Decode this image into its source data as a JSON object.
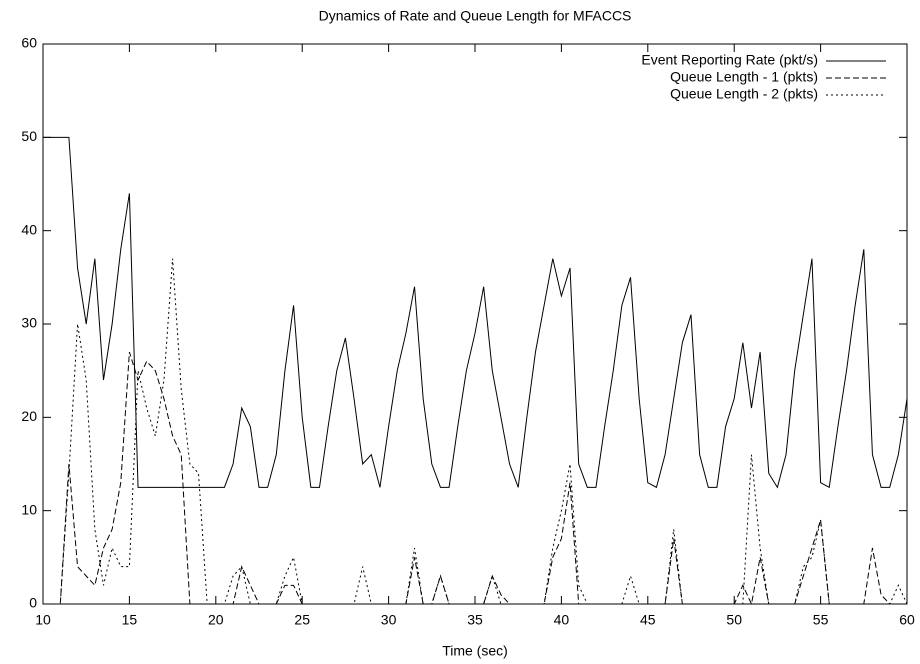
{
  "chart_data": {
    "type": "line",
    "title": "Dynamics of Rate and Queue Length for MFACCS",
    "xlabel": "Time (sec)",
    "x": [
      10,
      10.5,
      11,
      11.5,
      12,
      12.5,
      13,
      13.5,
      14,
      14.5,
      15,
      15.5,
      16,
      16.5,
      17,
      17.5,
      18,
      18.5,
      19,
      19.5,
      20,
      20.5,
      21,
      21.5,
      22,
      22.5,
      23,
      23.5,
      24,
      24.5,
      25,
      25.5,
      26,
      26.5,
      27,
      27.5,
      28,
      28.5,
      29,
      29.5,
      30,
      30.5,
      31,
      31.5,
      32,
      32.5,
      33,
      33.5,
      34,
      34.5,
      35,
      35.5,
      36,
      36.5,
      37,
      37.5,
      38,
      38.5,
      39,
      39.5,
      40,
      40.5,
      41,
      41.5,
      42,
      42.5,
      43,
      43.5,
      44,
      44.5,
      45,
      45.5,
      46,
      46.5,
      47,
      47.5,
      48,
      48.5,
      49,
      49.5,
      50,
      50.5,
      51,
      51.5,
      52,
      52.5,
      53,
      53.5,
      54,
      54.5,
      55,
      55.5,
      56,
      56.5,
      57,
      57.5,
      58,
      58.5,
      59,
      59.5,
      60
    ],
    "series": [
      {
        "name": "Event Reporting Rate (pkt/s)",
        "color": "#000000",
        "dash": "solid",
        "values": [
          50,
          50,
          50,
          50,
          36,
          30,
          37,
          24,
          30,
          38,
          44,
          12.5,
          12.5,
          12.5,
          12.5,
          12.5,
          12.5,
          12.5,
          12.5,
          12.5,
          12.5,
          12.5,
          15,
          21,
          19,
          12.5,
          12.5,
          16,
          25,
          32,
          20,
          12.5,
          12.5,
          19,
          25,
          28.5,
          22,
          15,
          16,
          12.5,
          19,
          25,
          29,
          34,
          22,
          15,
          12.5,
          12.5,
          19,
          25,
          29,
          34,
          25,
          20,
          15,
          12.5,
          20,
          27,
          32,
          37,
          33,
          36,
          15,
          12.5,
          12.5,
          19,
          25,
          32,
          35,
          22,
          13,
          12.5,
          16,
          22,
          28,
          31,
          16,
          12.5,
          12.5,
          19,
          22,
          28,
          21,
          27,
          14,
          12.5,
          16,
          25,
          31,
          37,
          13,
          12.5,
          19,
          25,
          32,
          38,
          16,
          12.5,
          12.5,
          16,
          22
        ]
      },
      {
        "name": "Queue Length - 1 (pkts)",
        "color": "#000000",
        "dash": "dashed",
        "values": [
          0,
          0,
          0,
          15,
          4,
          3,
          2,
          6,
          8,
          13,
          27,
          24,
          26,
          25,
          22,
          18,
          16,
          0,
          0,
          0,
          0,
          0,
          0,
          4,
          2,
          0,
          0,
          0,
          2,
          2,
          0,
          0,
          0,
          0,
          0,
          0,
          0,
          0,
          0,
          0,
          0,
          0,
          0,
          5,
          0,
          0,
          3,
          0,
          0,
          0,
          0,
          0,
          3,
          1,
          0,
          0,
          0,
          0,
          0,
          5,
          7,
          13,
          0,
          0,
          0,
          0,
          0,
          0,
          0,
          0,
          0,
          0,
          0,
          7,
          0,
          0,
          0,
          0,
          0,
          0,
          0,
          2,
          0,
          5,
          0,
          0,
          0,
          0,
          3,
          6,
          9,
          0,
          0,
          0,
          0,
          0,
          6,
          1,
          0,
          0,
          0
        ]
      },
      {
        "name": "Queue Length - 2 (pkts)",
        "color": "#000000",
        "dash": "dotted",
        "values": [
          0,
          0,
          0,
          14,
          30,
          24,
          8,
          2,
          6,
          4,
          4,
          25,
          21,
          18,
          24,
          37,
          23,
          15,
          14,
          0,
          0,
          0,
          3,
          4,
          0,
          0,
          0,
          0,
          3,
          5,
          0,
          0,
          0,
          0,
          0,
          0,
          0,
          4,
          0,
          0,
          0,
          0,
          0,
          6,
          0,
          0,
          3,
          0,
          0,
          0,
          0,
          0,
          3,
          0,
          0,
          0,
          0,
          0,
          0,
          6,
          10,
          15,
          2,
          0,
          0,
          0,
          0,
          0,
          3,
          0,
          0,
          0,
          0,
          8,
          0,
          0,
          0,
          0,
          0,
          0,
          0,
          0,
          16,
          6,
          0,
          0,
          0,
          0,
          4,
          5,
          9,
          0,
          0,
          0,
          0,
          0,
          0,
          0,
          0,
          2,
          0
        ]
      }
    ],
    "xlim": [
      10,
      60
    ],
    "xticks": [
      10,
      15,
      20,
      25,
      30,
      35,
      40,
      45,
      50,
      55,
      60
    ],
    "ylim": [
      0,
      60
    ],
    "yticks": [
      0,
      10,
      20,
      30,
      40,
      50,
      60
    ],
    "grid": false,
    "legend": "top-right"
  }
}
